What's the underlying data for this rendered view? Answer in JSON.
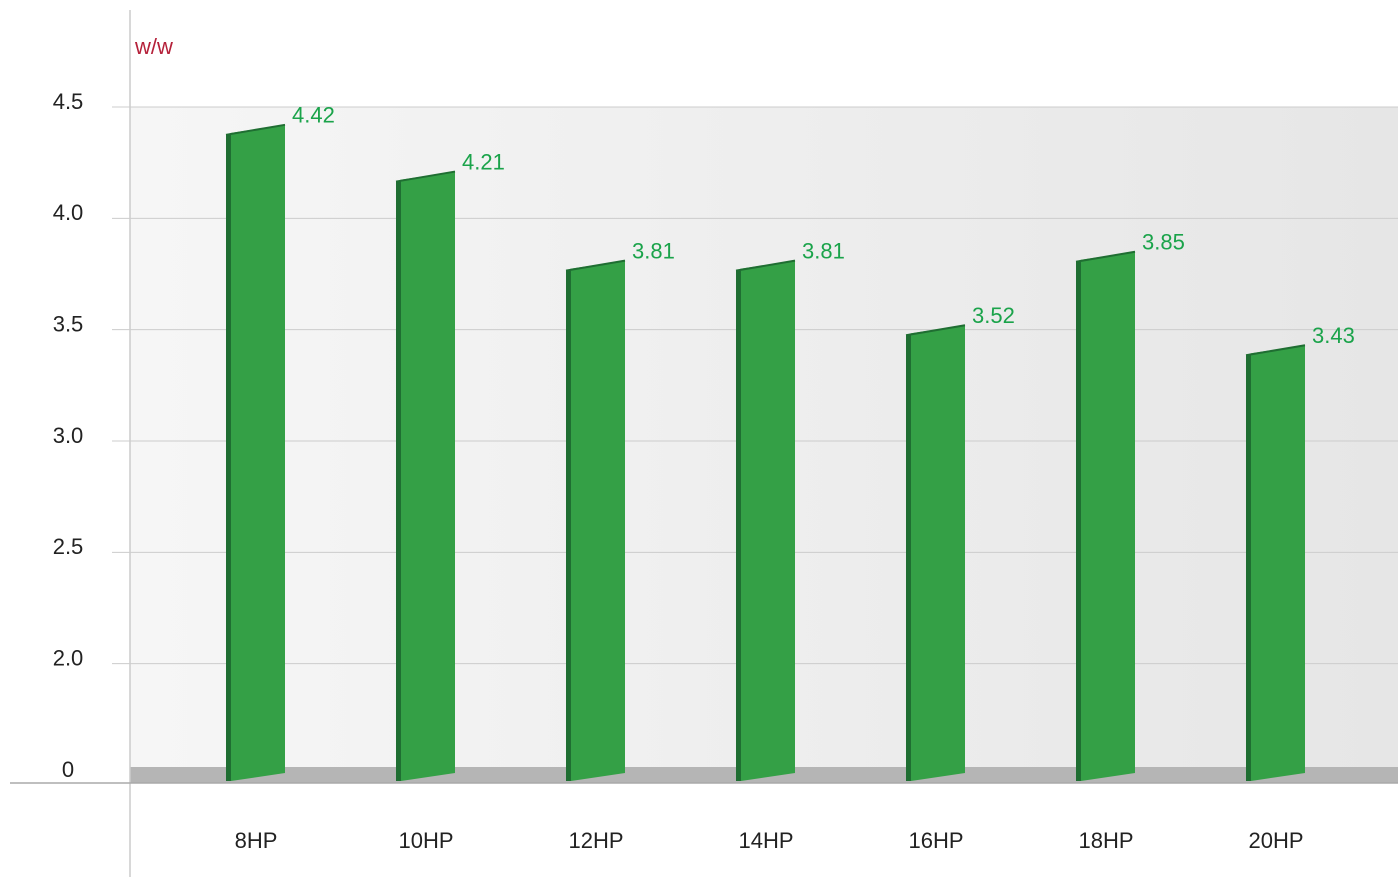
{
  "chart_data": {
    "type": "bar",
    "y_label": "w/w",
    "categories": [
      "8HP",
      "10HP",
      "12HP",
      "14HP",
      "16HP",
      "18HP",
      "20HP"
    ],
    "values": [
      4.42,
      4.21,
      3.81,
      3.81,
      3.52,
      3.85,
      3.43
    ],
    "color": "#34a046",
    "ylim": [
      0,
      4.5
    ],
    "yticks": [
      0,
      {
        "value": 2,
        "label": "2.0"
      },
      2.5,
      {
        "value": 3,
        "label": "3.0"
      },
      3.5,
      {
        "value": 4,
        "label": "4.0"
      },
      4.5
    ],
    "grid": true
  }
}
